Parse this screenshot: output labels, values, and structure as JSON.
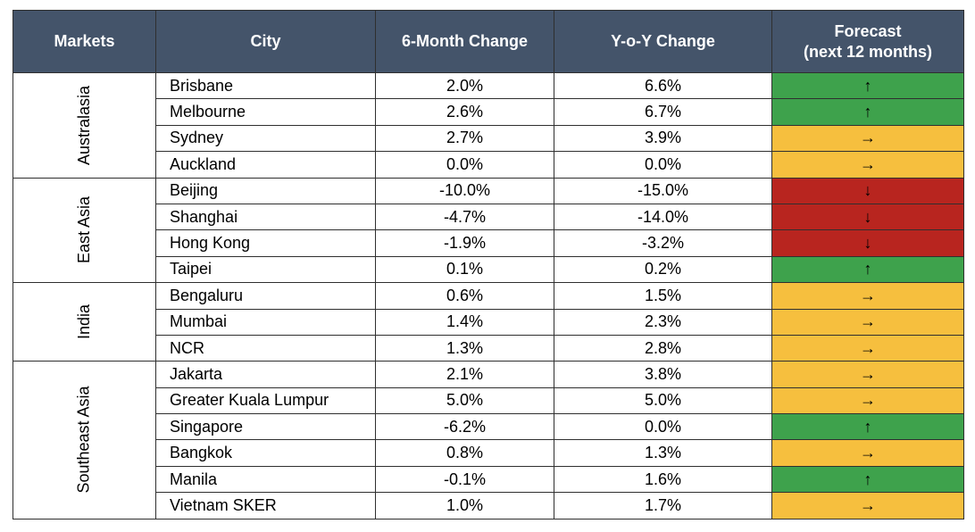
{
  "headers": {
    "markets": "Markets",
    "city": "City",
    "six_month": "6-Month Change",
    "yoy": "Y-o-Y Change",
    "forecast_line1": "Forecast",
    "forecast_line2": "(next 12 months)"
  },
  "arrows": {
    "up": "↑",
    "flat": "→",
    "down": "↓"
  },
  "colors": {
    "header_bg": "#44546a",
    "up": "#3ea24c",
    "flat": "#f6bf3e",
    "down": "#b8251f"
  },
  "groups": [
    {
      "market": "Australasia",
      "rows": [
        {
          "city": "Brisbane",
          "six": "2.0%",
          "yoy": "6.6%",
          "forecast": "up"
        },
        {
          "city": "Melbourne",
          "six": "2.6%",
          "yoy": "6.7%",
          "forecast": "up"
        },
        {
          "city": "Sydney",
          "six": "2.7%",
          "yoy": "3.9%",
          "forecast": "flat"
        },
        {
          "city": "Auckland",
          "six": "0.0%",
          "yoy": "0.0%",
          "forecast": "flat"
        }
      ]
    },
    {
      "market": "East Asia",
      "rows": [
        {
          "city": "Beijing",
          "six": "-10.0%",
          "yoy": "-15.0%",
          "forecast": "down"
        },
        {
          "city": "Shanghai",
          "six": "-4.7%",
          "yoy": "-14.0%",
          "forecast": "down"
        },
        {
          "city": "Hong Kong",
          "six": "-1.9%",
          "yoy": "-3.2%",
          "forecast": "down"
        },
        {
          "city": "Taipei",
          "six": "0.1%",
          "yoy": "0.2%",
          "forecast": "up"
        }
      ]
    },
    {
      "market": "India",
      "rows": [
        {
          "city": "Bengaluru",
          "six": "0.6%",
          "yoy": "1.5%",
          "forecast": "flat"
        },
        {
          "city": "Mumbai",
          "six": "1.4%",
          "yoy": "2.3%",
          "forecast": "flat"
        },
        {
          "city": "NCR",
          "six": "1.3%",
          "yoy": "2.8%",
          "forecast": "flat"
        }
      ]
    },
    {
      "market": "Southeast Asia",
      "rows": [
        {
          "city": "Jakarta",
          "six": "2.1%",
          "yoy": "3.8%",
          "forecast": "flat"
        },
        {
          "city": "Greater Kuala Lumpur",
          "six": "5.0%",
          "yoy": "5.0%",
          "forecast": "flat"
        },
        {
          "city": "Singapore",
          "six": "-6.2%",
          "yoy": "0.0%",
          "forecast": "up"
        },
        {
          "city": "Bangkok",
          "six": "0.8%",
          "yoy": "1.3%",
          "forecast": "flat"
        },
        {
          "city": "Manila",
          "six": "-0.1%",
          "yoy": "1.6%",
          "forecast": "up"
        },
        {
          "city": "Vietnam SKER",
          "six": "1.0%",
          "yoy": "1.7%",
          "forecast": "flat"
        }
      ]
    }
  ]
}
